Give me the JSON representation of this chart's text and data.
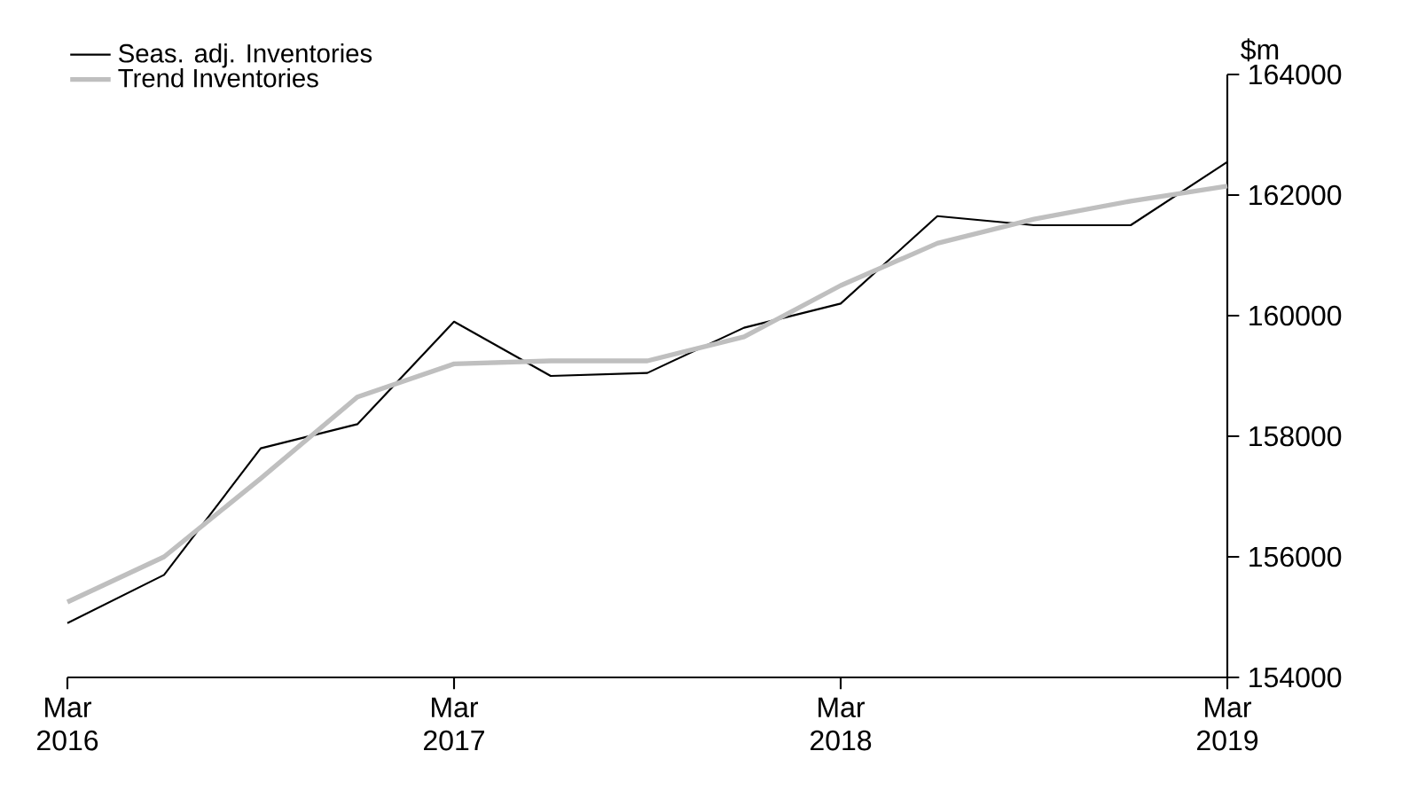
{
  "chart_data": {
    "type": "line",
    "ylabel": "$m",
    "x": [
      "2016-03",
      "2016-06",
      "2016-09",
      "2016-12",
      "2017-03",
      "2017-06",
      "2017-09",
      "2017-12",
      "2018-03",
      "2018-06",
      "2018-09",
      "2018-12",
      "2019-03"
    ],
    "series": [
      {
        "name": "Seas. adj. Inventories",
        "color": "#000000",
        "values": [
          154900,
          155700,
          157800,
          158200,
          159900,
          159000,
          159050,
          159800,
          160200,
          161650,
          161500,
          161500,
          162550
        ]
      },
      {
        "name": "Trend Inventories",
        "color": "#bfbfbf",
        "values": [
          155250,
          156000,
          157300,
          158650,
          159200,
          159250,
          159250,
          159650,
          160500,
          161200,
          161600,
          161900,
          162150
        ]
      }
    ],
    "xlim": [
      "2016-03",
      "2019-03"
    ],
    "xticks": [
      {
        "value": "2016-03",
        "label": "Mar 2016"
      },
      {
        "value": "2017-03",
        "label": "Mar 2017"
      },
      {
        "value": "2018-03",
        "label": "Mar 2018"
      },
      {
        "value": "2019-03",
        "label": "Mar 2019"
      }
    ],
    "ylim": [
      154000,
      164000
    ],
    "yticks": [
      154000,
      156000,
      158000,
      160000,
      162000,
      164000
    ],
    "legend": "top left",
    "grid": false,
    "marker": "none",
    "line_style": "solid"
  }
}
